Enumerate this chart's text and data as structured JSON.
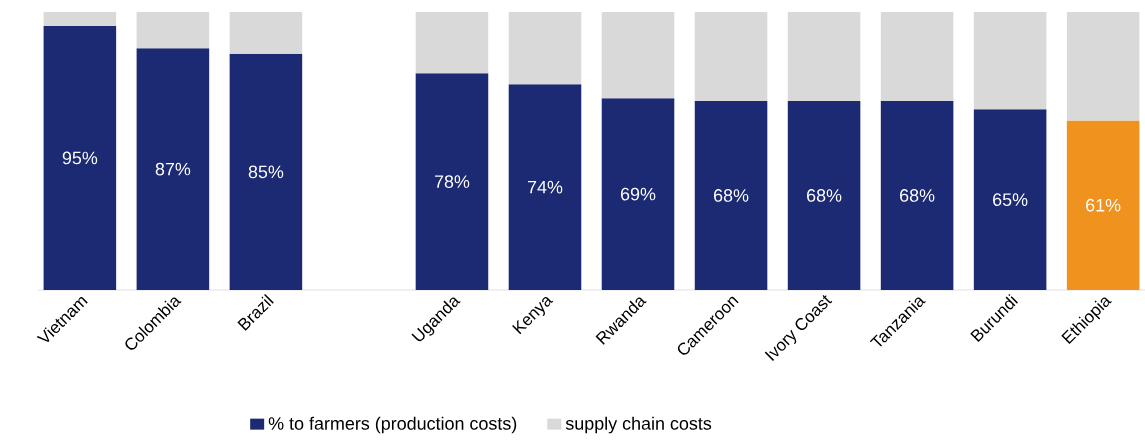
{
  "chart_data": {
    "type": "bar",
    "stacked": true,
    "categories": [
      "Vietnam",
      "Colombia",
      "Brazil",
      null,
      "Uganda",
      "Kenya",
      "Rwanda",
      "Cameroon",
      "Ivory Coast",
      "Tanzania",
      "Burundi",
      "Ethiopia"
    ],
    "series": [
      {
        "name": "% to farmers (production costs)",
        "color": "#1c2a74",
        "colors": [
          "#1c2a74",
          "#1c2a74",
          "#1c2a74",
          "#1c2a74",
          "#1c2a74",
          "#1c2a74",
          "#1c2a74",
          "#1c2a74",
          "#1c2a74",
          "#1c2a74",
          "#1c2a74",
          "#f0921e"
        ],
        "values": [
          95,
          87,
          85,
          null,
          78,
          74,
          69,
          68,
          68,
          68,
          65,
          61
        ],
        "value_labels": [
          "95%",
          "87%",
          "85%",
          null,
          "78%",
          "74%",
          "69%",
          "68%",
          "68%",
          "68%",
          "65%",
          "61%"
        ]
      },
      {
        "name": "supply chain costs",
        "color": "#d9d9d9",
        "values": [
          5,
          13,
          15,
          null,
          22,
          26,
          31,
          32,
          32,
          32,
          35,
          39
        ]
      }
    ],
    "ylim": [
      0,
      100
    ],
    "tick_labels": "x",
    "legend": "bottom"
  }
}
